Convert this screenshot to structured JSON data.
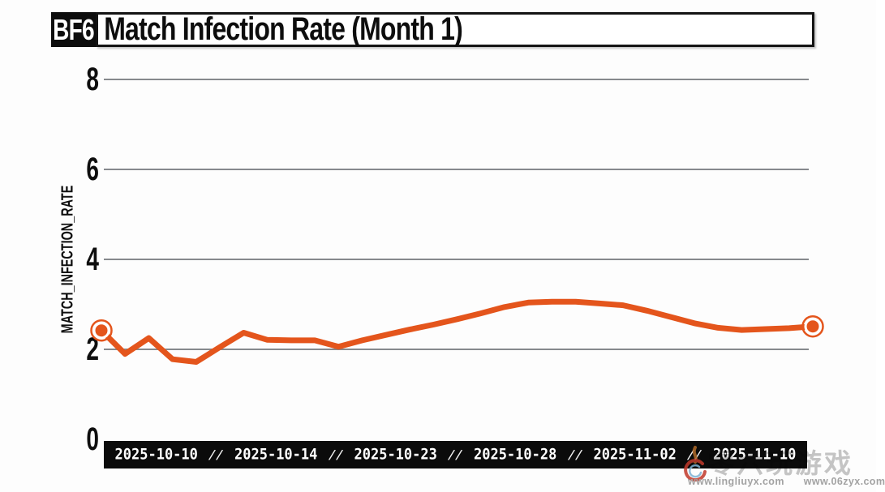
{
  "header": {
    "badge": "BF6",
    "title": "Match Infection Rate (Month 1)"
  },
  "chart_data": {
    "type": "line",
    "title": "Match Infection Rate (Month 1)",
    "ylabel": "MATCH_INFECTION_RATE",
    "ylim": [
      0,
      8
    ],
    "yticks": [
      0,
      2,
      4,
      6,
      8
    ],
    "grid": true,
    "x_tick_labels": [
      "2025-10-10",
      "2025-10-14",
      "2025-10-23",
      "2025-10-28",
      "2025-11-02",
      "2025-11-10"
    ],
    "x_separator": "//",
    "legend": "none",
    "series": [
      {
        "name": "match_infection_rate",
        "color": "#e4551c",
        "marker": "endpoints-only",
        "values": [
          2.42,
          1.9,
          2.25,
          1.78,
          1.72,
          2.05,
          2.37,
          2.21,
          2.2,
          2.2,
          2.06,
          2.2,
          2.32,
          2.44,
          2.55,
          2.67,
          2.8,
          2.94,
          3.04,
          3.06,
          3.06,
          3.02,
          2.98,
          2.86,
          2.72,
          2.58,
          2.48,
          2.43,
          2.45,
          2.47,
          2.51
        ]
      }
    ]
  },
  "watermark": {
    "text_zh": "零六玩游戏",
    "url_left": "www.lingliuyx.com",
    "url_right": "www.06zyx.com",
    "logo": "flame-swirl-logo"
  },
  "colors": {
    "accent_orange": "#e4551c",
    "grid_gray": "#86898d",
    "bar_black": "#0b0b0b",
    "border_black": "#141414",
    "watermark_gray": "#c6c6c6",
    "url_gray": "#a3a3a3"
  }
}
